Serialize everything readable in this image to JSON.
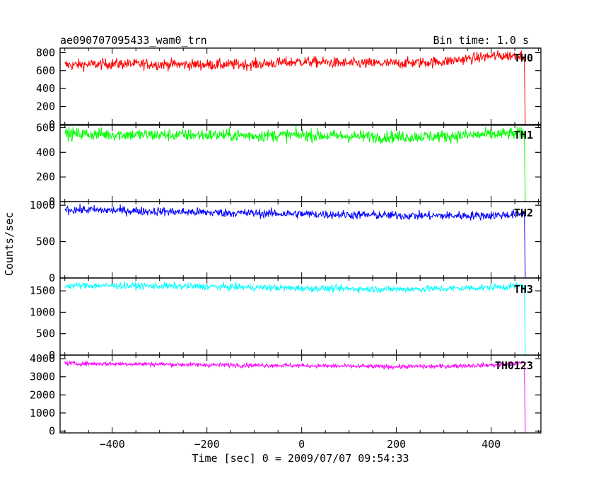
{
  "chart_data": {
    "type": "line",
    "title": "ae090707095433_wam0_trn",
    "bin_time_label": "Bin time: 1.0 s",
    "xlabel": "Time [sec] 0 = 2009/07/07 09:54:33",
    "ylabel": "Counts/sec",
    "xlim": [
      -510,
      505
    ],
    "x_ticks": [
      -400,
      -200,
      0,
      200,
      400
    ],
    "x_tick_labels": [
      "−400",
      "−200",
      "0",
      "200",
      "400"
    ],
    "x_data_range": [
      -500,
      470
    ],
    "grid": false,
    "series": [
      {
        "name": "TH0",
        "color": "#ff0000",
        "ylim": [
          0,
          850
        ],
        "y_ticks": [
          0,
          200,
          400,
          600,
          800
        ],
        "y_tick_labels": [
          "0",
          "200",
          "400",
          "600",
          "800"
        ],
        "noise": 30,
        "trend_x": [
          -500,
          -400,
          -300,
          -200,
          -100,
          0,
          100,
          200,
          300,
          400,
          470
        ],
        "trend_y": [
          660,
          675,
          670,
          665,
          670,
          700,
          680,
          680,
          700,
          760,
          770
        ]
      },
      {
        "name": "TH1",
        "color": "#00ff00",
        "ylim": [
          0,
          620
        ],
        "y_ticks": [
          0,
          200,
          400,
          600
        ],
        "y_tick_labels": [
          "0",
          "200",
          "400",
          "600"
        ],
        "noise": 25,
        "trend_x": [
          -500,
          -400,
          -300,
          -200,
          -100,
          0,
          100,
          200,
          300,
          400,
          470
        ],
        "trend_y": [
          550,
          545,
          540,
          540,
          535,
          540,
          530,
          525,
          530,
          545,
          555
        ]
      },
      {
        "name": "TH2",
        "color": "#0000ff",
        "ylim": [
          0,
          1050
        ],
        "y_ticks": [
          0,
          500,
          1000
        ],
        "y_tick_labels": [
          "0",
          "500",
          "1000"
        ],
        "noise": 30,
        "trend_x": [
          -500,
          -400,
          -300,
          -200,
          -100,
          0,
          100,
          200,
          300,
          400,
          470
        ],
        "trend_y": [
          940,
          930,
          915,
          900,
          890,
          880,
          870,
          860,
          855,
          860,
          880
        ]
      },
      {
        "name": "TH3",
        "color": "#00ffff",
        "ylim": [
          0,
          1800
        ],
        "y_ticks": [
          0,
          500,
          1000,
          1500
        ],
        "y_tick_labels": [
          "0",
          "500",
          "1000",
          "1500"
        ],
        "noise": 40,
        "trend_x": [
          -500,
          -400,
          -300,
          -200,
          -100,
          0,
          100,
          200,
          300,
          400,
          470
        ],
        "trend_y": [
          1620,
          1620,
          1610,
          1600,
          1580,
          1560,
          1550,
          1540,
          1550,
          1580,
          1620
        ]
      },
      {
        "name": "TH0123",
        "color": "#ff00ff",
        "ylim": [
          -100,
          4200
        ],
        "y_ticks": [
          0,
          1000,
          2000,
          3000,
          4000
        ],
        "y_tick_labels": [
          "0",
          "1000",
          "2000",
          "3000",
          "4000"
        ],
        "noise": 60,
        "trend_x": [
          -500,
          -400,
          -300,
          -200,
          -100,
          0,
          100,
          200,
          300,
          400,
          470
        ],
        "trend_y": [
          3740,
          3720,
          3700,
          3660,
          3640,
          3620,
          3580,
          3560,
          3580,
          3650,
          3780
        ]
      }
    ]
  }
}
